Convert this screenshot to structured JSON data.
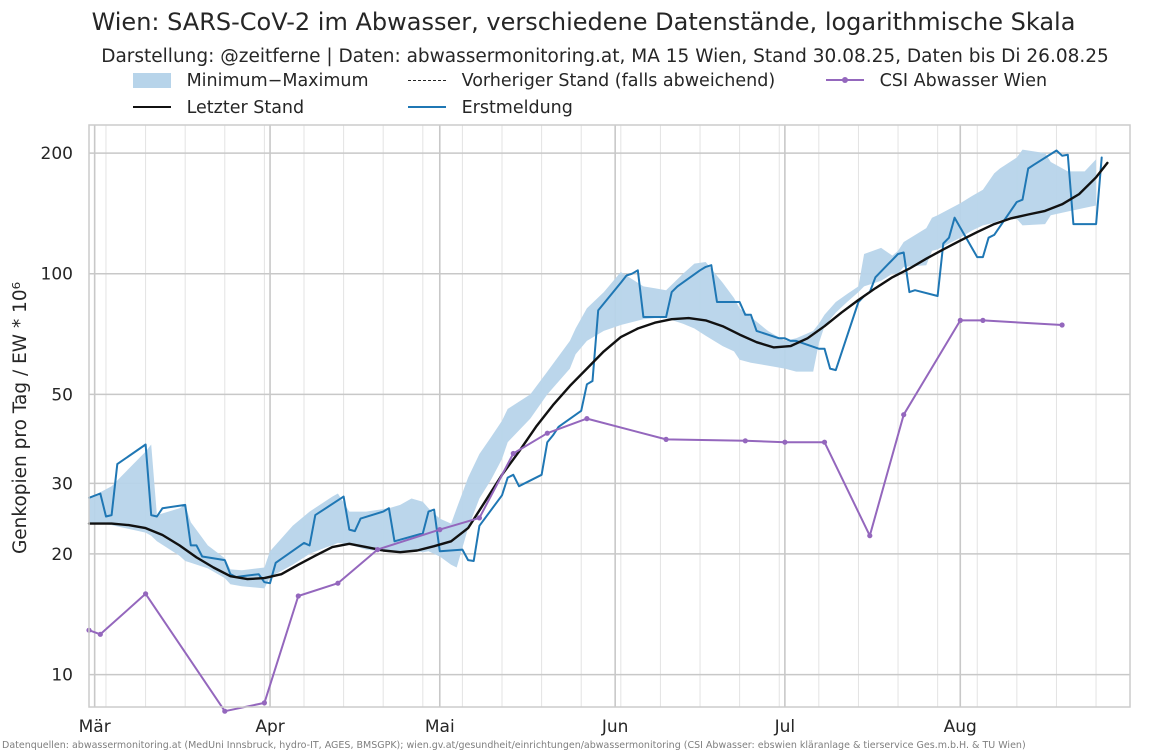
{
  "title": "Wien: SARS-CoV-2 im Abwasser, verschiedene Datenstände, logarithmische Skala",
  "subtitle": "Darstellung: @zeitferne | Daten: abwassermonitoring.at, MA 15 Wien, Stand 30.08.25, Daten bis Di 26.08.25",
  "source": "Datenquellen: abwassermonitoring.at (MedUni Innsbruck, hydro-IT, AGES, BMSGPK); wien.gv.at/gesundheit/einrichtungen/abwassermonitoring (CSI Abwasser: ebswien kläranlage & tierservice Ges.m.b.H. & TU Wien)",
  "legend": [
    {
      "label": "Minimum−Maximum",
      "style": "band",
      "color": "#b7d4ea"
    },
    {
      "label": "Vorheriger Stand (falls abweichend)",
      "style": "dashed",
      "color": "#262626"
    },
    {
      "label": "CSI Abwasser Wien",
      "style": "line-marker",
      "color": "#9467bd"
    },
    {
      "label": "Letzter Stand",
      "style": "line",
      "color": "#111111"
    },
    {
      "label": "Erstmeldung",
      "style": "line",
      "color": "#1f77b4"
    }
  ],
  "chart_data": {
    "type": "line",
    "y_scale": "log",
    "ylabel": "Genkopien pro Tag / EW * 10⁶",
    "ylim": [
      8.3,
      235
    ],
    "y_ticks": [
      10,
      20,
      30,
      50,
      100,
      200
    ],
    "y_tick_labels": [
      "10",
      "20",
      "30",
      "50",
      "100",
      "200"
    ],
    "xlim": [
      "2025-02-28",
      "2025-08-31"
    ],
    "x_ticks": [
      "2025-03-01",
      "2025-04-01",
      "2025-05-01",
      "2025-06-01",
      "2025-07-01",
      "2025-08-01"
    ],
    "x_tick_labels": [
      "Mär",
      "Apr",
      "Mai",
      "Jun",
      "Jul",
      "Aug"
    ],
    "grid": true,
    "legend_position": "top",
    "series": [
      {
        "name": "Minimum−Maximum",
        "kind": "band",
        "color": "#b7d4ea",
        "x": [
          "2025-02-28",
          "2025-03-02",
          "2025-03-04",
          "2025-03-10",
          "2025-03-11",
          "2025-03-12",
          "2025-03-16",
          "2025-03-17",
          "2025-03-18",
          "2025-03-21",
          "2025-03-24",
          "2025-03-25",
          "2025-03-27",
          "2025-03-31",
          "2025-04-01",
          "2025-04-05",
          "2025-04-08",
          "2025-04-11",
          "2025-04-12",
          "2025-04-13",
          "2025-04-15",
          "2025-04-18",
          "2025-04-22",
          "2025-04-24",
          "2025-04-26",
          "2025-04-28",
          "2025-04-29",
          "2025-05-01",
          "2025-05-03",
          "2025-05-04",
          "2025-05-06",
          "2025-05-08",
          "2025-05-10",
          "2025-05-12",
          "2025-05-13",
          "2025-05-17",
          "2025-05-20",
          "2025-05-24",
          "2025-05-25",
          "2025-05-27",
          "2025-05-30",
          "2025-06-02",
          "2025-06-06",
          "2025-06-08",
          "2025-06-10",
          "2025-06-13",
          "2025-06-15",
          "2025-06-17",
          "2025-06-20",
          "2025-06-22",
          "2025-06-23",
          "2025-06-25",
          "2025-06-28",
          "2025-07-01",
          "2025-07-03",
          "2025-07-06",
          "2025-07-07",
          "2025-07-08",
          "2025-07-10",
          "2025-07-12",
          "2025-07-14",
          "2025-07-15",
          "2025-07-18",
          "2025-07-20",
          "2025-07-21",
          "2025-07-22",
          "2025-07-26",
          "2025-07-27",
          "2025-07-28",
          "2025-08-01",
          "2025-08-03",
          "2025-08-05",
          "2025-08-07",
          "2025-08-08",
          "2025-08-11",
          "2025-08-12",
          "2025-08-16",
          "2025-08-17",
          "2025-08-20",
          "2025-08-23",
          "2025-08-25"
        ],
        "low": [
          23.8,
          23.8,
          23.6,
          22.6,
          22.2,
          21.5,
          19.8,
          19.2,
          19.0,
          18.4,
          17.4,
          16.8,
          16.6,
          16.4,
          17.5,
          18.8,
          20.0,
          20.8,
          21.0,
          21.3,
          21.1,
          20.5,
          20.2,
          20.3,
          20.4,
          20.2,
          20.3,
          19.7,
          18.8,
          18.5,
          23.2,
          27.5,
          30.5,
          34.5,
          38.0,
          43.5,
          50.0,
          58.0,
          63.0,
          68.0,
          72.0,
          74.5,
          77.0,
          77.5,
          77.5,
          75.0,
          73.0,
          70.0,
          66.0,
          64.0,
          61.0,
          60.0,
          59.0,
          58.0,
          57.0,
          57.0,
          67.0,
          74.0,
          80.0,
          85.0,
          90.0,
          93.0,
          96.0,
          100.0,
          100.0,
          104.0,
          105.0,
          114.0,
          115.0,
          123.0,
          128.0,
          132.0,
          134.0,
          136.0,
          137.0,
          132.0,
          133.0,
          140.0,
          143.0,
          146.0,
          148.0
        ],
        "high": [
          27.6,
          28.5,
          29.5,
          36.0,
          37.5,
          25.0,
          26.0,
          26.5,
          24.0,
          21.0,
          19.5,
          18.3,
          18.2,
          18.5,
          20.3,
          23.5,
          25.5,
          27.2,
          27.8,
          28.3,
          25.5,
          25.5,
          26.0,
          26.5,
          27.5,
          27.0,
          26.0,
          24.5,
          23.8,
          26.0,
          31.0,
          35.5,
          39.0,
          43.0,
          46.0,
          50.0,
          57.0,
          68.0,
          73.0,
          82.0,
          90.0,
          101.0,
          93.0,
          92.0,
          91.0,
          100.0,
          106.0,
          107.0,
          95.0,
          87.0,
          82.0,
          78.0,
          72.0,
          68.0,
          69.0,
          72.0,
          75.0,
          79.0,
          85.0,
          89.0,
          93.0,
          112.0,
          116.0,
          111.0,
          114.0,
          120.0,
          130.0,
          138.0,
          140.0,
          150.0,
          156.0,
          162.0,
          178.0,
          183.0,
          195.0,
          204.0,
          200.0,
          190.0,
          180.0,
          180.0,
          193.0
        ]
      },
      {
        "name": "Letzter Stand",
        "kind": "line",
        "color": "#111111",
        "x": [
          "2025-02-28",
          "2025-03-04",
          "2025-03-07",
          "2025-03-10",
          "2025-03-13",
          "2025-03-16",
          "2025-03-19",
          "2025-03-22",
          "2025-03-25",
          "2025-03-28",
          "2025-03-31",
          "2025-04-03",
          "2025-04-06",
          "2025-04-09",
          "2025-04-12",
          "2025-04-15",
          "2025-04-18",
          "2025-04-21",
          "2025-04-24",
          "2025-04-27",
          "2025-04-30",
          "2025-05-03",
          "2025-05-06",
          "2025-05-09",
          "2025-05-12",
          "2025-05-15",
          "2025-05-18",
          "2025-05-21",
          "2025-05-24",
          "2025-05-27",
          "2025-05-30",
          "2025-06-02",
          "2025-06-05",
          "2025-06-08",
          "2025-06-11",
          "2025-06-14",
          "2025-06-17",
          "2025-06-20",
          "2025-06-23",
          "2025-06-26",
          "2025-06-29",
          "2025-07-02",
          "2025-07-05",
          "2025-07-08",
          "2025-07-11",
          "2025-07-14",
          "2025-07-17",
          "2025-07-20",
          "2025-07-23",
          "2025-07-26",
          "2025-07-29",
          "2025-08-01",
          "2025-08-04",
          "2025-08-07",
          "2025-08-10",
          "2025-08-13",
          "2025-08-16",
          "2025-08-19",
          "2025-08-22",
          "2025-08-25",
          "2025-08-27"
        ],
        "y": [
          23.8,
          23.8,
          23.6,
          23.2,
          22.3,
          21.0,
          19.6,
          18.5,
          17.6,
          17.3,
          17.4,
          17.8,
          18.8,
          19.8,
          20.8,
          21.2,
          20.8,
          20.4,
          20.2,
          20.4,
          20.9,
          21.5,
          23.2,
          27.0,
          31.5,
          36.0,
          41.5,
          47.0,
          52.5,
          58.0,
          64.0,
          69.5,
          73.0,
          75.5,
          77.0,
          77.5,
          76.5,
          74.0,
          70.5,
          67.5,
          65.5,
          66.0,
          69.0,
          74.0,
          80.0,
          86.0,
          92.0,
          98.0,
          103.0,
          109.0,
          115.0,
          121.0,
          127.0,
          133.0,
          137.5,
          140.5,
          143.5,
          149.0,
          158.0,
          174.0,
          189.0
        ]
      },
      {
        "name": "Erstmeldung",
        "kind": "line",
        "color": "#1f77b4",
        "x": [
          "2025-02-28",
          "2025-03-02",
          "2025-03-03",
          "2025-03-04",
          "2025-03-05",
          "2025-03-10",
          "2025-03-11",
          "2025-03-12",
          "2025-03-13",
          "2025-03-17",
          "2025-03-18",
          "2025-03-19",
          "2025-03-20",
          "2025-03-24",
          "2025-03-25",
          "2025-03-26",
          "2025-03-27",
          "2025-03-30",
          "2025-03-31",
          "2025-04-01",
          "2025-04-02",
          "2025-04-07",
          "2025-04-08",
          "2025-04-09",
          "2025-04-14",
          "2025-04-15",
          "2025-04-16",
          "2025-04-17",
          "2025-04-21",
          "2025-04-22",
          "2025-04-23",
          "2025-04-24",
          "2025-04-28",
          "2025-04-29",
          "2025-04-30",
          "2025-05-01",
          "2025-05-05",
          "2025-05-06",
          "2025-05-07",
          "2025-05-08",
          "2025-05-12",
          "2025-05-13",
          "2025-05-14",
          "2025-05-15",
          "2025-05-19",
          "2025-05-20",
          "2025-05-21",
          "2025-05-22",
          "2025-05-26",
          "2025-05-27",
          "2025-05-28",
          "2025-05-29",
          "2025-06-02",
          "2025-06-03",
          "2025-06-04",
          "2025-06-05",
          "2025-06-06",
          "2025-06-10",
          "2025-06-11",
          "2025-06-12",
          "2025-06-16",
          "2025-06-17",
          "2025-06-18",
          "2025-06-19",
          "2025-06-23",
          "2025-06-24",
          "2025-06-25",
          "2025-06-26",
          "2025-06-30",
          "2025-07-01",
          "2025-07-02",
          "2025-07-03",
          "2025-07-07",
          "2025-07-08",
          "2025-07-09",
          "2025-07-10",
          "2025-07-14",
          "2025-07-15",
          "2025-07-16",
          "2025-07-17",
          "2025-07-21",
          "2025-07-22",
          "2025-07-23",
          "2025-07-24",
          "2025-07-28",
          "2025-07-29",
          "2025-07-30",
          "2025-07-31",
          "2025-08-04",
          "2025-08-05",
          "2025-08-06",
          "2025-08-07",
          "2025-08-11",
          "2025-08-12",
          "2025-08-13",
          "2025-08-14",
          "2025-08-18",
          "2025-08-19",
          "2025-08-20",
          "2025-08-21",
          "2025-08-25",
          "2025-08-26"
        ],
        "y": [
          27.6,
          28.3,
          24.8,
          25.0,
          33.5,
          37.5,
          25.0,
          24.8,
          26.0,
          26.5,
          21.0,
          21.0,
          19.7,
          19.3,
          17.8,
          17.5,
          17.6,
          17.8,
          17.0,
          16.9,
          19.0,
          21.3,
          21.0,
          25.0,
          27.8,
          23.0,
          22.8,
          24.5,
          25.5,
          26.0,
          21.5,
          21.7,
          22.5,
          25.5,
          25.8,
          20.3,
          20.5,
          19.3,
          19.2,
          23.5,
          28.0,
          31.0,
          31.5,
          29.5,
          31.5,
          38.0,
          39.5,
          41.5,
          45.5,
          53.0,
          54.0,
          81.0,
          95.0,
          99.0,
          100.0,
          102.0,
          78.0,
          78.0,
          90.0,
          93.0,
          102.0,
          104.0,
          105.0,
          85.0,
          85.0,
          79.0,
          79.0,
          72.0,
          69.0,
          69.0,
          68.0,
          68.0,
          65.0,
          65.0,
          58.0,
          57.5,
          85.0,
          88.0,
          90.0,
          98.0,
          112.0,
          113.0,
          90.0,
          91.0,
          88.0,
          119.0,
          123.0,
          138.0,
          110.0,
          110.0,
          123.0,
          125.0,
          151.0,
          153.0,
          183.0,
          187.0,
          203.0,
          197.0,
          198.0,
          133.0,
          133.0,
          195.0
        ]
      },
      {
        "name": "CSI Abwasser Wien",
        "kind": "line-marker",
        "color": "#9467bd",
        "x": [
          "2025-02-28",
          "2025-03-02",
          "2025-03-10",
          "2025-03-24",
          "2025-03-31",
          "2025-04-06",
          "2025-04-13",
          "2025-04-20",
          "2025-05-01",
          "2025-05-08",
          "2025-05-14",
          "2025-05-20",
          "2025-05-27",
          "2025-06-10",
          "2025-06-24",
          "2025-07-01",
          "2025-07-08",
          "2025-07-16",
          "2025-07-22",
          "2025-08-01",
          "2025-08-05",
          "2025-08-19"
        ],
        "y": [
          12.9,
          12.6,
          15.9,
          8.1,
          8.5,
          15.7,
          16.9,
          20.5,
          23.0,
          24.6,
          35.6,
          40.0,
          43.5,
          38.6,
          38.3,
          38.0,
          38.0,
          22.2,
          44.5,
          76.5,
          76.5,
          74.5
        ]
      }
    ]
  }
}
